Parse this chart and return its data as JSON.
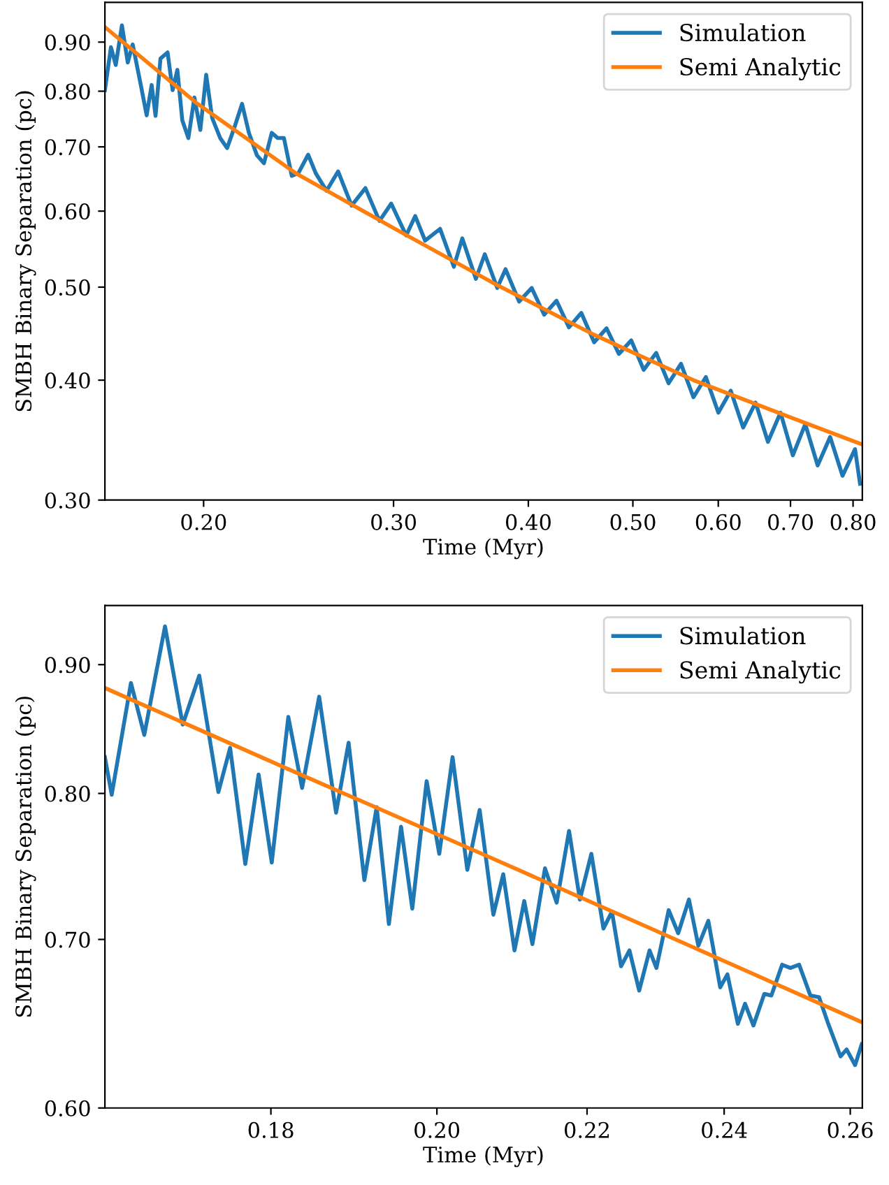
{
  "chart_data": [
    {
      "type": "line",
      "xlabel": "Time (Myr)",
      "ylabel": "SMBH Binary Separation (pc)",
      "log": "xy",
      "legend": "top right",
      "grid": false,
      "xlim": [
        0.162,
        0.816
      ],
      "ylim": [
        0.3,
        0.99
      ],
      "xticks": [
        {
          "value": 0.2,
          "label": "0.20"
        },
        {
          "value": 0.3,
          "label": "0.30"
        },
        {
          "value": 0.4,
          "label": "0.40"
        },
        {
          "value": 0.5,
          "label": "0.50"
        },
        {
          "value": 0.6,
          "label": "0.60"
        },
        {
          "value": 0.7,
          "label": "0.70"
        },
        {
          "value": 0.8,
          "label": "0.80"
        }
      ],
      "yticks": [
        {
          "value": 0.3,
          "label": "0.30"
        },
        {
          "value": 0.4,
          "label": "0.40"
        },
        {
          "value": 0.5,
          "label": "0.50"
        },
        {
          "value": 0.6,
          "label": "0.60"
        },
        {
          "value": 0.7,
          "label": "0.70"
        },
        {
          "value": 0.8,
          "label": "0.80"
        },
        {
          "value": 0.9,
          "label": "0.90"
        }
      ],
      "series": [
        {
          "name": "Simulation",
          "color": "#1f77b4",
          "x": [
            0.162,
            0.1641,
            0.1658,
            0.168,
            0.1701,
            0.1719,
            0.1749,
            0.1771,
            0.179,
            0.1805,
            0.1824,
            0.1852,
            0.1872,
            0.1891,
            0.1911,
            0.1936,
            0.1961,
            0.1986,
            0.2011,
            0.2037,
            0.2072,
            0.2103,
            0.2139,
            0.2171,
            0.2203,
            0.2241,
            0.2275,
            0.2313,
            0.2343,
            0.2374,
            0.2414,
            0.2448,
            0.25,
            0.2541,
            0.26,
            0.2665,
            0.2743,
            0.2825,
            0.2911,
            0.2985,
            0.3082,
            0.3142,
            0.3209,
            0.3313,
            0.3412,
            0.3474,
            0.3576,
            0.3645,
            0.3743,
            0.381,
            0.3922,
            0.4029,
            0.4137,
            0.4248,
            0.4362,
            0.4479,
            0.4603,
            0.4727,
            0.4853,
            0.4983,
            0.5117,
            0.5255,
            0.5396,
            0.5541,
            0.569,
            0.5843,
            0.6001,
            0.6162,
            0.6327,
            0.6497,
            0.6671,
            0.6852,
            0.7035,
            0.7224,
            0.7418,
            0.7618,
            0.7822,
            0.8034,
            0.812
          ],
          "values": [
            0.802,
            0.889,
            0.852,
            0.937,
            0.857,
            0.895,
            0.812,
            0.755,
            0.812,
            0.754,
            0.865,
            0.878,
            0.802,
            0.842,
            0.746,
            0.715,
            0.788,
            0.729,
            0.832,
            0.75,
            0.715,
            0.698,
            0.737,
            0.776,
            0.724,
            0.686,
            0.673,
            0.724,
            0.715,
            0.715,
            0.653,
            0.657,
            0.687,
            0.657,
            0.63,
            0.66,
            0.608,
            0.634,
            0.586,
            0.611,
            0.566,
            0.593,
            0.559,
            0.575,
            0.525,
            0.562,
            0.51,
            0.541,
            0.499,
            0.522,
            0.483,
            0.499,
            0.468,
            0.484,
            0.454,
            0.47,
            0.438,
            0.453,
            0.426,
            0.44,
            0.41,
            0.427,
            0.397,
            0.416,
            0.384,
            0.403,
            0.37,
            0.39,
            0.357,
            0.379,
            0.345,
            0.37,
            0.334,
            0.36,
            0.326,
            0.349,
            0.318,
            0.339,
            0.312
          ]
        },
        {
          "name": "Semi Analytic",
          "color": "#ff7f0e",
          "x": [
            0.162,
            0.1969,
            0.2435,
            0.301,
            0.3723,
            0.4603,
            0.569,
            0.7035,
            0.8145
          ],
          "values": [
            0.933,
            0.778,
            0.657,
            0.575,
            0.504,
            0.446,
            0.4,
            0.365,
            0.343
          ]
        }
      ]
    },
    {
      "type": "line",
      "xlabel": "Time (Myr)",
      "ylabel": "SMBH Binary Separation (pc)",
      "log": "xy",
      "legend": "top right",
      "grid": false,
      "xlim": [
        0.162,
        0.262
      ],
      "ylim": [
        0.6,
        0.95
      ],
      "xticks": [
        {
          "value": 0.18,
          "label": "0.18"
        },
        {
          "value": 0.2,
          "label": "0.20"
        },
        {
          "value": 0.22,
          "label": "0.22"
        },
        {
          "value": 0.24,
          "label": "0.24"
        },
        {
          "value": 0.26,
          "label": "0.26"
        }
      ],
      "yticks": [
        {
          "value": 0.6,
          "label": "0.60"
        },
        {
          "value": 0.7,
          "label": "0.70"
        },
        {
          "value": 0.8,
          "label": "0.80"
        },
        {
          "value": 0.9,
          "label": "0.90"
        }
      ],
      "series": [
        {
          "name": "Simulation",
          "color": "#1f77b4",
          "x": [
            0.162,
            0.1627,
            0.1647,
            0.1661,
            0.1683,
            0.1702,
            0.172,
            0.1741,
            0.1754,
            0.1771,
            0.1786,
            0.1801,
            0.182,
            0.1836,
            0.1856,
            0.1876,
            0.1891,
            0.191,
            0.1925,
            0.194,
            0.1955,
            0.1969,
            0.1987,
            0.2003,
            0.202,
            0.2039,
            0.2055,
            0.2073,
            0.2086,
            0.2101,
            0.2114,
            0.2125,
            0.2142,
            0.2158,
            0.2175,
            0.219,
            0.2206,
            0.2223,
            0.2235,
            0.2248,
            0.226,
            0.2274,
            0.2289,
            0.2299,
            0.2317,
            0.2331,
            0.2347,
            0.2361,
            0.2376,
            0.2394,
            0.2405,
            0.2421,
            0.2432,
            0.2445,
            0.2462,
            0.2473,
            0.249,
            0.2503,
            0.2517,
            0.2535,
            0.2549,
            0.2563,
            0.2584,
            0.2594,
            0.2608,
            0.2619
          ],
          "values": [
            0.827,
            0.799,
            0.885,
            0.844,
            0.932,
            0.852,
            0.891,
            0.801,
            0.834,
            0.75,
            0.814,
            0.751,
            0.858,
            0.804,
            0.874,
            0.786,
            0.838,
            0.739,
            0.79,
            0.71,
            0.776,
            0.72,
            0.809,
            0.757,
            0.827,
            0.746,
            0.788,
            0.716,
            0.743,
            0.693,
            0.725,
            0.697,
            0.747,
            0.724,
            0.773,
            0.726,
            0.757,
            0.707,
            0.718,
            0.683,
            0.693,
            0.668,
            0.693,
            0.682,
            0.719,
            0.704,
            0.726,
            0.696,
            0.712,
            0.67,
            0.678,
            0.648,
            0.66,
            0.647,
            0.666,
            0.665,
            0.684,
            0.682,
            0.684,
            0.665,
            0.664,
            0.649,
            0.629,
            0.633,
            0.624,
            0.636
          ]
        },
        {
          "name": "Semi Analytic",
          "color": "#ff7f0e",
          "x": [
            0.162,
            0.1827,
            0.2071,
            0.2348,
            0.2619
          ],
          "values": [
            0.881,
            0.816,
            0.754,
            0.696,
            0.649
          ]
        }
      ]
    }
  ]
}
